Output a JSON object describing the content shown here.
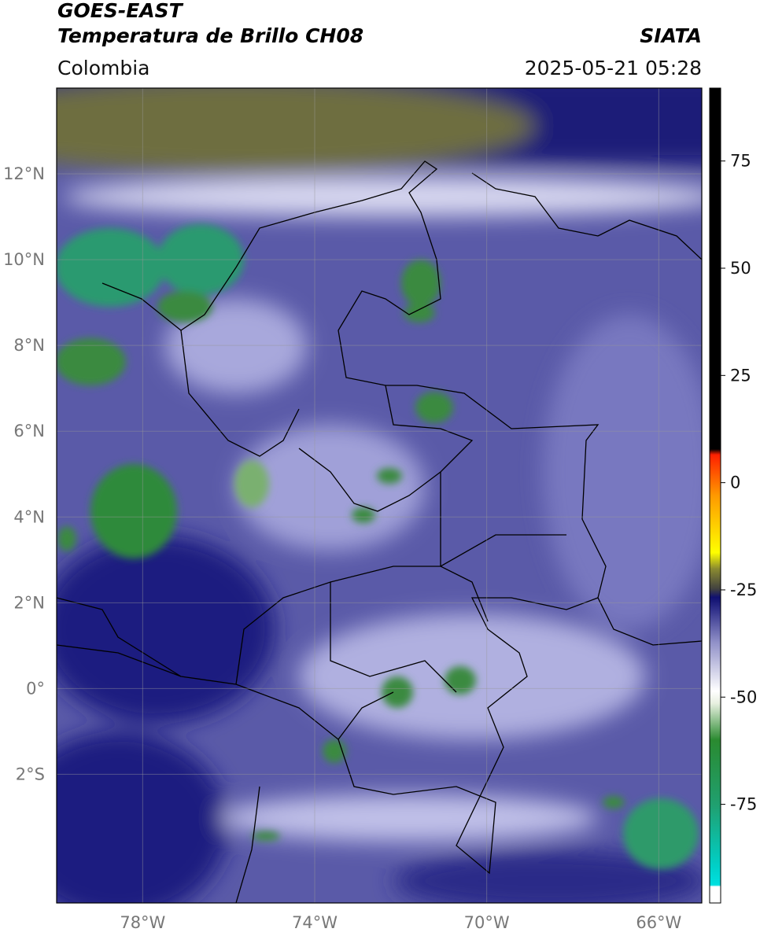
{
  "header": {
    "title": "GOES-EAST",
    "subtitle": "Temperatura de Brillo CH08",
    "source": "SIATA",
    "region": "Colombia",
    "datetime": "2025-05-21 05:28"
  },
  "map": {
    "xlim": [
      -80,
      -65
    ],
    "ylim": [
      -5,
      14
    ],
    "grid": true,
    "xticks": [
      {
        "value": -78,
        "label": "78°W"
      },
      {
        "value": -74,
        "label": "74°W"
      },
      {
        "value": -70,
        "label": "70°W"
      },
      {
        "value": -66,
        "label": "66°W"
      }
    ],
    "yticks": [
      {
        "value": 12,
        "label": "12°N"
      },
      {
        "value": 10,
        "label": "10°N"
      },
      {
        "value": 8,
        "label": "8°N"
      },
      {
        "value": 6,
        "label": "6°N"
      },
      {
        "value": 4,
        "label": "4°N"
      },
      {
        "value": 2,
        "label": "2°N"
      },
      {
        "value": 0,
        "label": "0°"
      },
      {
        "value": -2,
        "label": "2°S"
      }
    ]
  },
  "colorbar": {
    "lim": [
      -98,
      92
    ],
    "ticks": [
      75,
      50,
      25,
      0,
      -25,
      -50,
      -75
    ]
  }
}
